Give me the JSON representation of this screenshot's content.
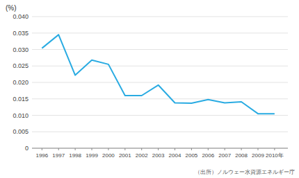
{
  "chart_data": {
    "type": "line",
    "y_label": "(%)",
    "annotations": [
      "（出所）ノルウェー水資源エネルギー庁"
    ],
    "x": [
      1996,
      1997,
      1998,
      1999,
      2000,
      2001,
      2002,
      2003,
      2004,
      2005,
      2006,
      2007,
      2008,
      2009,
      2010
    ],
    "values": [
      0.0304,
      0.0345,
      0.0222,
      0.0268,
      0.0255,
      0.016,
      0.016,
      0.0192,
      0.0138,
      0.0137,
      0.0148,
      0.0138,
      0.0141,
      0.0105,
      0.0105
    ],
    "color": "#29ABE2",
    "xlim": [
      1995.4,
      2010.8
    ],
    "xticks": [
      1996,
      1997,
      1998,
      1999,
      2000,
      2001,
      2002,
      2003,
      2004,
      2005,
      2006,
      2007,
      2008,
      2009,
      {
        "value": 2010,
        "label": "2010年"
      }
    ],
    "ylim": [
      0,
      0.04
    ],
    "yticks": [
      0,
      0.005,
      {
        "value": 0.01,
        "label": "0.010"
      },
      0.015,
      {
        "value": 0.02,
        "label": "0.020"
      },
      0.025,
      {
        "value": 0.03,
        "label": "0.030"
      },
      0.035,
      {
        "value": 0.04,
        "label": "0.040"
      }
    ],
    "grid": true
  }
}
